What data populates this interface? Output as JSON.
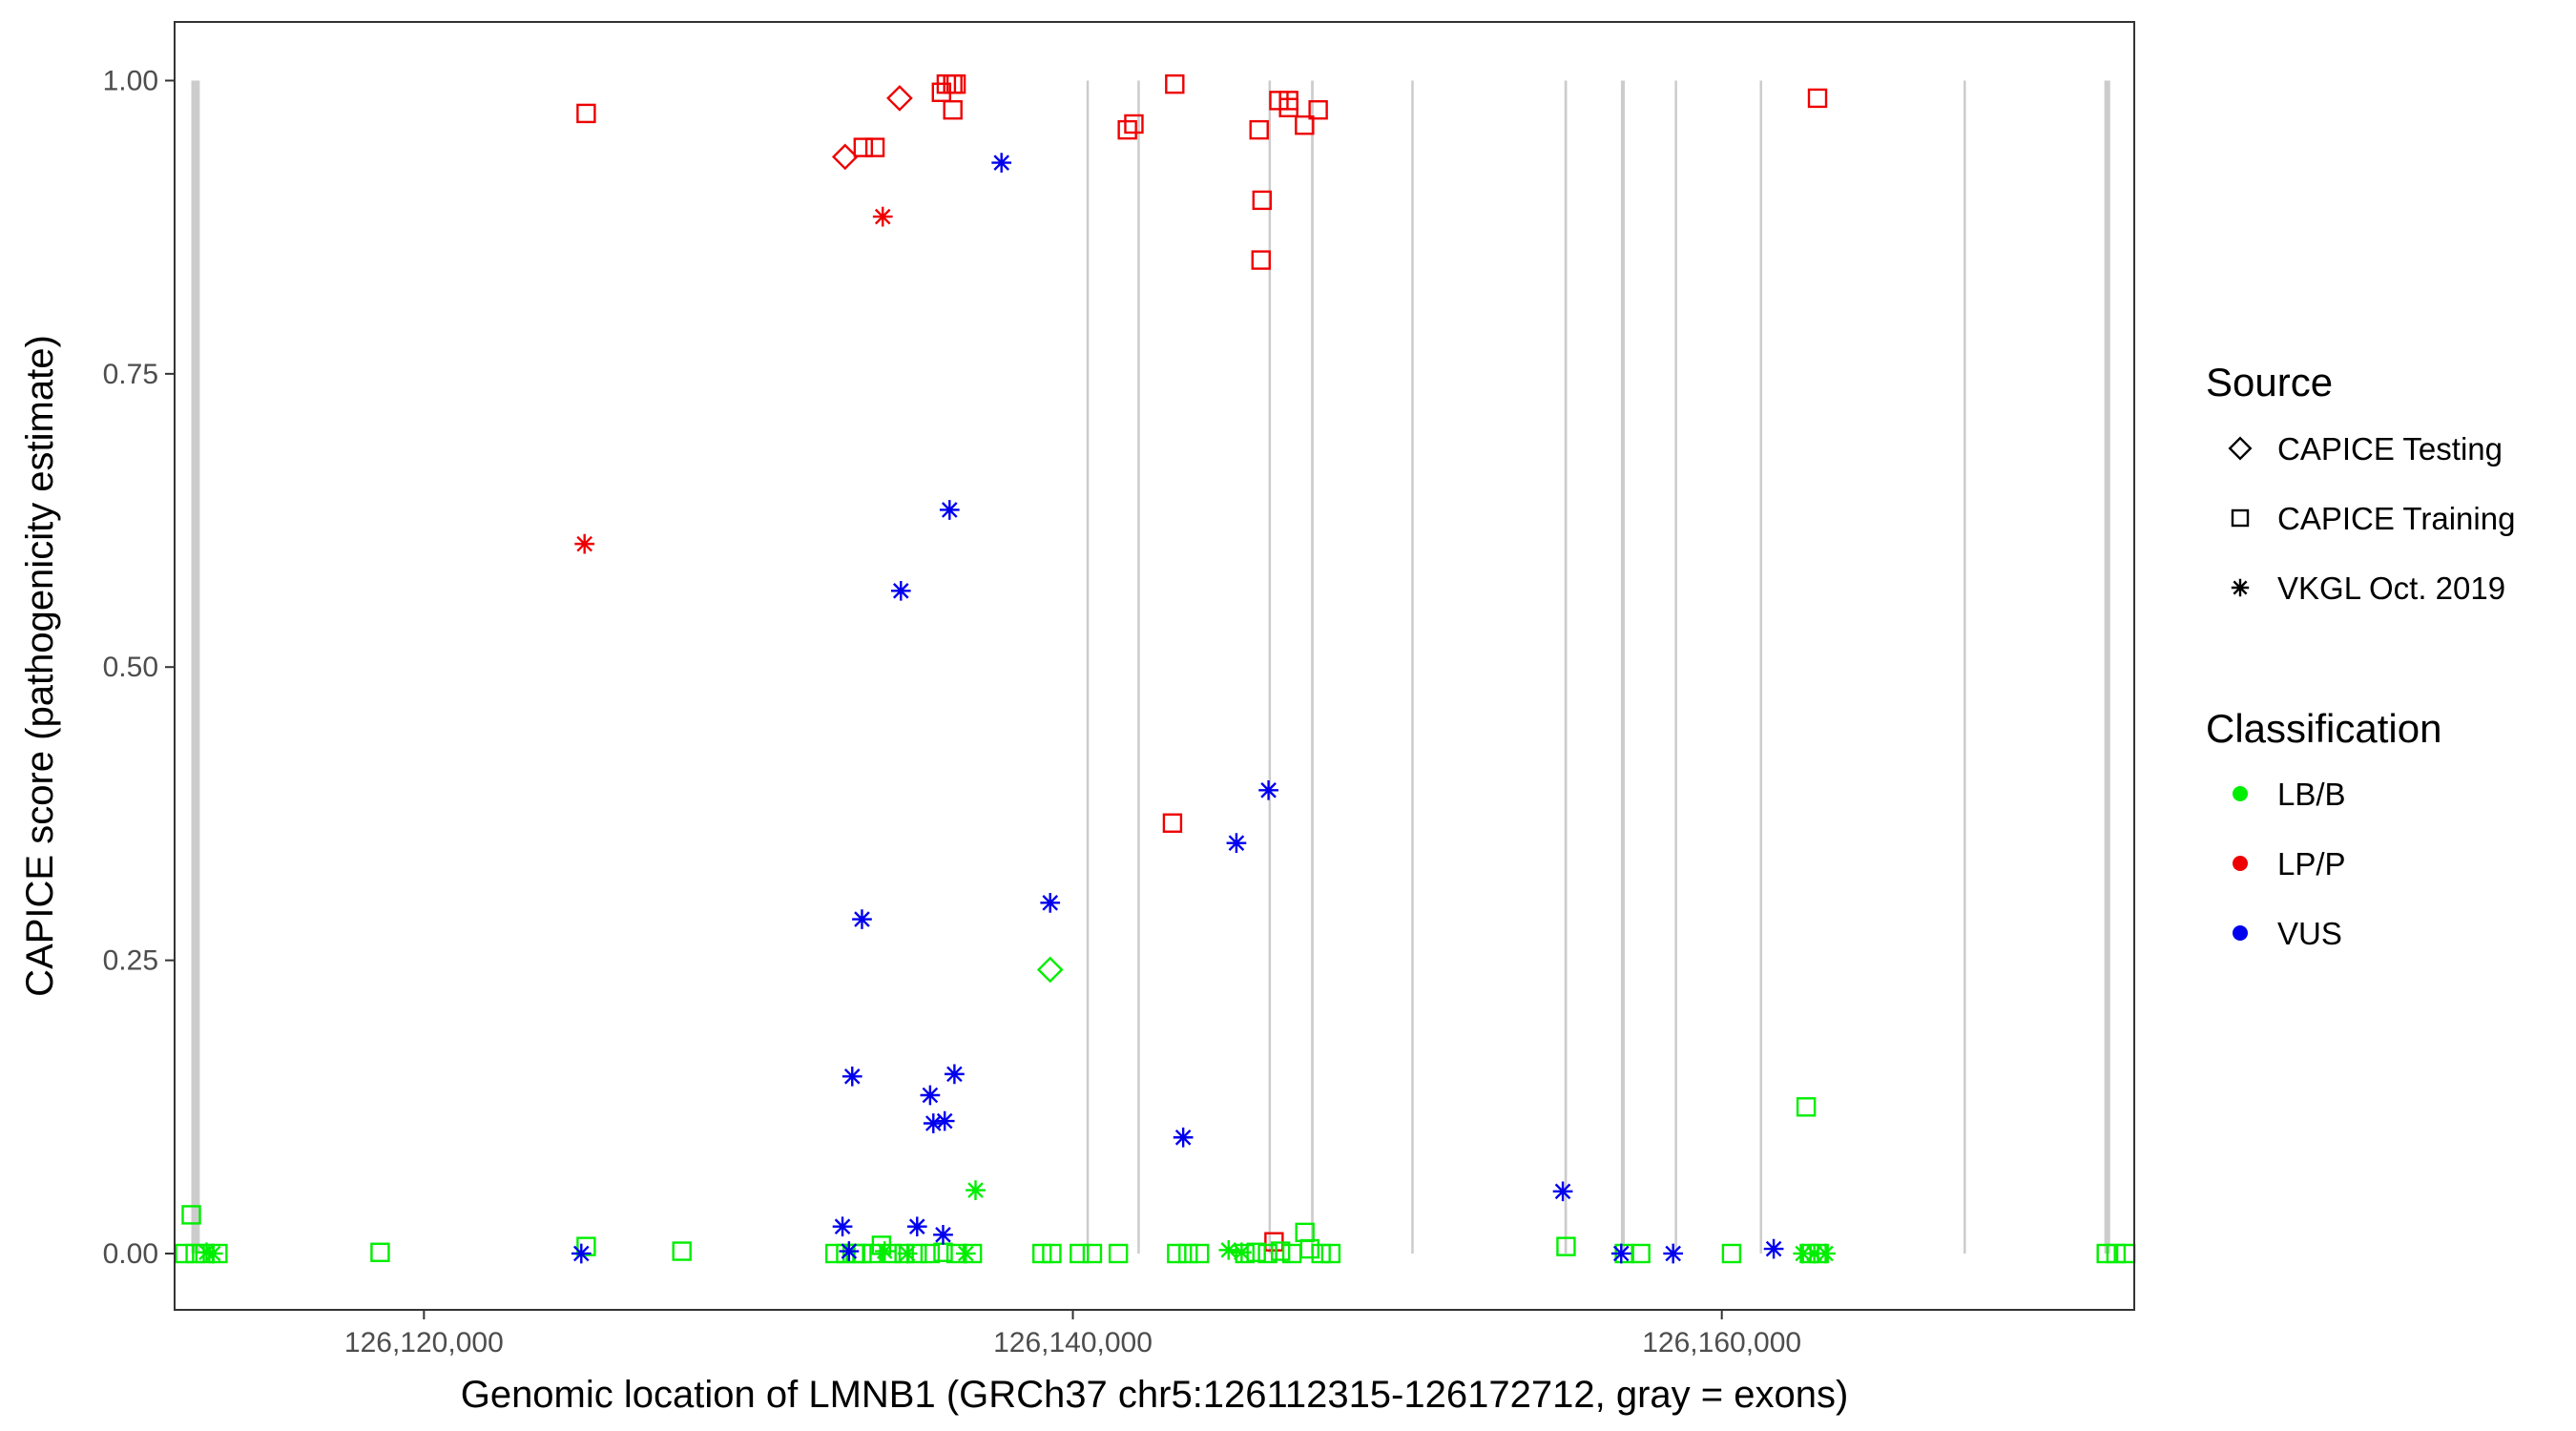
{
  "chart_data": {
    "type": "scatter",
    "title": "",
    "xlabel": "Genomic location of LMNB1 (GRCh37 chr5:126112315-126172712, gray = exons)",
    "ylabel": "CAPICE score (pathogenicity estimate)",
    "xlim": [
      126112315,
      126172712
    ],
    "ylim": [
      -0.048,
      1.05
    ],
    "x_ticks": [
      126120000,
      126140000,
      126160000
    ],
    "x_tick_labels": [
      "126,120,000",
      "126,140,000",
      "126,160,000"
    ],
    "y_ticks": [
      0,
      0.25,
      0.5,
      0.75,
      1
    ],
    "y_tick_labels": [
      "0.00",
      "0.25",
      "0.50",
      "0.75",
      "1.00"
    ],
    "grid": false,
    "exons": [
      {
        "start": 126112830,
        "end": 126113090
      },
      {
        "start": 126140420,
        "end": 126140480
      },
      {
        "start": 126141990,
        "end": 126142050
      },
      {
        "start": 126146030,
        "end": 126146090
      },
      {
        "start": 126147340,
        "end": 126147420
      },
      {
        "start": 126150430,
        "end": 126150480
      },
      {
        "start": 126155150,
        "end": 126155230
      },
      {
        "start": 126156890,
        "end": 126157010
      },
      {
        "start": 126158550,
        "end": 126158600
      },
      {
        "start": 126161170,
        "end": 126161220
      },
      {
        "start": 126167450,
        "end": 126167510
      },
      {
        "start": 126171790,
        "end": 126171970
      }
    ],
    "legend": {
      "position": "right",
      "source": {
        "title": "Source",
        "items": [
          {
            "label": "CAPICE Testing",
            "shape": "diamond"
          },
          {
            "label": "CAPICE Training",
            "shape": "square"
          },
          {
            "label": "VKGL Oct. 2019",
            "shape": "asterisk"
          }
        ]
      },
      "classification": {
        "title": "Classification",
        "items": [
          {
            "label": "LB/B",
            "color": "#00ee00"
          },
          {
            "label": "LP/P",
            "color": "#ee0000"
          },
          {
            "label": "VUS",
            "color": "#0000ee"
          }
        ]
      }
    },
    "colors": {
      "LB/B": "#00ee00",
      "LP/P": "#ee0000",
      "VUS": "#0000ee",
      "exon": "#cccccc"
    },
    "series": [
      {
        "source": "CAPICE Testing",
        "classification": "LP/P",
        "shape": "diamond",
        "points": [
          [
            126132980,
            0.935
          ],
          [
            126134660,
            0.985
          ]
        ]
      },
      {
        "source": "CAPICE Testing",
        "classification": "LB/B",
        "shape": "diamond",
        "points": [
          [
            126139300,
            0.242
          ]
        ]
      },
      {
        "source": "CAPICE Training",
        "classification": "LP/P",
        "shape": "square",
        "points": [
          [
            126125000,
            0.972
          ],
          [
            126133540,
            0.943
          ],
          [
            126133900,
            0.943
          ],
          [
            126135950,
            0.99
          ],
          [
            126136100,
            0.997
          ],
          [
            126136300,
            0.997
          ],
          [
            126136400,
            0.997
          ],
          [
            126136300,
            0.975
          ],
          [
            126141680,
            0.958
          ],
          [
            126141880,
            0.963
          ],
          [
            126143140,
            0.997
          ],
          [
            126143070,
            0.367
          ],
          [
            126145740,
            0.958
          ],
          [
            126145830,
            0.898
          ],
          [
            126145800,
            0.847
          ],
          [
            126146350,
            0.983
          ],
          [
            126146650,
            0.983
          ],
          [
            126146650,
            0.977
          ],
          [
            126147140,
            0.962
          ],
          [
            126147560,
            0.975
          ],
          [
            126162950,
            0.985
          ],
          [
            126146200,
            0.01
          ]
        ]
      },
      {
        "source": "CAPICE Training",
        "classification": "LB/B",
        "shape": "square",
        "points": [
          [
            126112620,
            0.0
          ],
          [
            126112830,
            0.033
          ],
          [
            126112950,
            0.0
          ],
          [
            126113250,
            0.0
          ],
          [
            126113650,
            0.0
          ],
          [
            126118650,
            0.001
          ],
          [
            126125000,
            0.006
          ],
          [
            126127950,
            0.002
          ],
          [
            126132670,
            0.0
          ],
          [
            126133000,
            0.0
          ],
          [
            126133300,
            0.0
          ],
          [
            126133500,
            0.0
          ],
          [
            126133800,
            0.0
          ],
          [
            126134100,
            0.007
          ],
          [
            126134400,
            0.0
          ],
          [
            126134800,
            0.0
          ],
          [
            126135200,
            0.0
          ],
          [
            126135600,
            0.0
          ],
          [
            126136000,
            0.001
          ],
          [
            126136400,
            0.0
          ],
          [
            126136900,
            0.0
          ],
          [
            126139050,
            0.0
          ],
          [
            126139350,
            0.0
          ],
          [
            126140200,
            0.0
          ],
          [
            126140600,
            0.0
          ],
          [
            126141400,
            0.0
          ],
          [
            126143200,
            0.0
          ],
          [
            126143550,
            0.0
          ],
          [
            126143900,
            0.0
          ],
          [
            126145300,
            0.0
          ],
          [
            126145650,
            0.001
          ],
          [
            126146000,
            0.0
          ],
          [
            126146400,
            0.002
          ],
          [
            126146750,
            0.0
          ],
          [
            126147150,
            0.018
          ],
          [
            126147300,
            0.004
          ],
          [
            126147650,
            0.0
          ],
          [
            126147950,
            0.0
          ],
          [
            126155200,
            0.006
          ],
          [
            126157000,
            0.0
          ],
          [
            126157500,
            0.0
          ],
          [
            126160300,
            0.0
          ],
          [
            126162600,
            0.125
          ],
          [
            126162700,
            0.0
          ],
          [
            126163000,
            0.0
          ],
          [
            126171850,
            0.0
          ],
          [
            126172150,
            0.0
          ],
          [
            126172450,
            0.0
          ]
        ]
      },
      {
        "source": "VKGL Oct. 2019",
        "classification": "LP/P",
        "shape": "asterisk",
        "points": [
          [
            126134140,
            0.884
          ],
          [
            126124950,
            0.605
          ]
        ]
      },
      {
        "source": "VKGL Oct. 2019",
        "classification": "VUS",
        "shape": "asterisk",
        "points": [
          [
            126124850,
            0.0
          ],
          [
            126132900,
            0.023
          ],
          [
            126133200,
            0.151
          ],
          [
            126133500,
            0.285
          ],
          [
            126134700,
            0.565
          ],
          [
            126135200,
            0.023
          ],
          [
            126135600,
            0.135
          ],
          [
            126135700,
            0.111
          ],
          [
            126136050,
            0.113
          ],
          [
            126136000,
            0.016
          ],
          [
            126136200,
            0.634
          ],
          [
            126136350,
            0.153
          ],
          [
            126137800,
            0.93
          ],
          [
            126139300,
            0.299
          ],
          [
            126143400,
            0.099
          ],
          [
            126145040,
            0.35
          ],
          [
            126146030,
            0.395
          ],
          [
            126155100,
            0.053
          ],
          [
            126156900,
            0.0
          ],
          [
            126158500,
            0.0
          ],
          [
            126161600,
            0.004
          ],
          [
            126133100,
            0.002
          ]
        ]
      },
      {
        "source": "VKGL Oct. 2019",
        "classification": "LB/B",
        "shape": "asterisk",
        "points": [
          [
            126113300,
            0.001
          ],
          [
            126113500,
            0.0
          ],
          [
            126134200,
            0.002
          ],
          [
            126134900,
            0.0
          ],
          [
            126136700,
            0.0
          ],
          [
            126137000,
            0.054
          ],
          [
            126144800,
            0.003
          ],
          [
            126145200,
            0.001
          ],
          [
            126162500,
            0.0
          ],
          [
            126162850,
            0.0
          ],
          [
            126163200,
            0.0
          ]
        ]
      }
    ]
  }
}
